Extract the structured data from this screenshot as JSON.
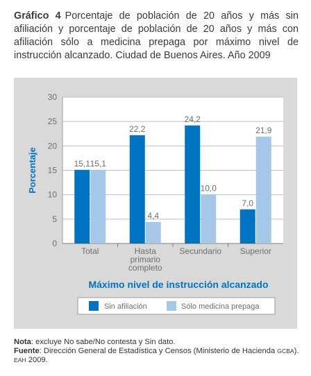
{
  "caption": {
    "label": "Gráfico 4",
    "text": "Porcentaje de población de 20 años y más sin afiliación y porcentaje de población de 20 años y más con afiliación sólo a medicina prepaga por máximo nivel de instrucción alcanzado. Ciudad de Buenos Aires. Año 2009"
  },
  "notes": {
    "nota_label": "Nota",
    "nota_text": ": excluye No sabe/No contesta y Sin dato.",
    "fuente_label": "Fuente",
    "fuente_text_1": ": Dirección General de Estadística y Censos (Ministerio de Hacienda ",
    "fuente_gcba": "gcba",
    "fuente_text_2": "). ",
    "fuente_eah": "eah",
    "fuente_text_3": " 2009."
  },
  "chart_data": {
    "type": "bar",
    "categories": [
      [
        "Total"
      ],
      [
        "Hasta",
        "primario",
        "completo"
      ],
      [
        "Secundario"
      ],
      [
        "Superior"
      ]
    ],
    "series": [
      {
        "name": "Sin afiliación",
        "values": [
          15.1,
          22.2,
          24.2,
          7.0
        ],
        "labels": [
          "15,1",
          "22,2",
          "24,2",
          "7,0"
        ],
        "color": "#0073c2"
      },
      {
        "name": "Sólo medicina prepaga",
        "values": [
          15.1,
          4.4,
          10.0,
          21.9
        ],
        "labels": [
          "15,1",
          "4,4",
          "10,0",
          "21,9"
        ],
        "color": "#a6c8e8"
      }
    ],
    "ylabel": "Porcentaje",
    "xlabel": "Máximo nivel de instrucción alcanzado",
    "ylim": [
      0,
      30
    ],
    "yticks": [
      0,
      5,
      10,
      15,
      20,
      25,
      30
    ],
    "legend_position": "bottom",
    "colors": {
      "axis_title": "#0073c2",
      "panel_bg": "#d9d9d9",
      "plot_bg": "#ffffff",
      "grid": "#bfbfbf",
      "label_text": "#6e6e6e"
    }
  }
}
